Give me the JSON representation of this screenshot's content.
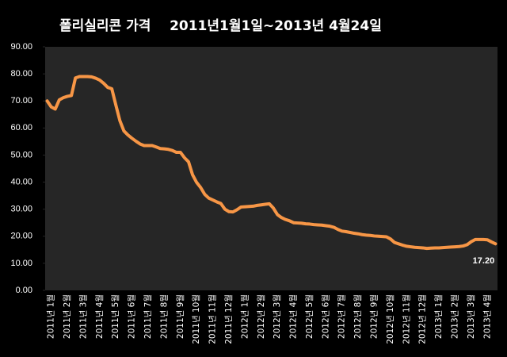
{
  "chart_data": {
    "type": "line",
    "title": "폴리실리콘 가격    2011년1월1일~2013년 4월24일",
    "categories": [
      null,
      "2011년 1월",
      null,
      null,
      null,
      "2011년 2월",
      null,
      null,
      null,
      "2011년 3월",
      null,
      null,
      null,
      "2011년 4월",
      null,
      null,
      null,
      "2011년 5월",
      null,
      null,
      null,
      "2011년 6월",
      null,
      null,
      null,
      "2011년 7월",
      null,
      null,
      null,
      "2011년 8월",
      null,
      null,
      null,
      "2011년 9월",
      null,
      null,
      null,
      "2011년 10월",
      null,
      null,
      null,
      "2011년 11월",
      null,
      null,
      null,
      "2011년 12월",
      null,
      null,
      null,
      "2012년 1월",
      null,
      null,
      null,
      "2012년 2월",
      null,
      null,
      null,
      "2012년 3월",
      null,
      null,
      null,
      "2012년 4월",
      null,
      null,
      null,
      "2012년 5월",
      null,
      null,
      null,
      "2012년 6월",
      null,
      null,
      null,
      "2012년 7월",
      null,
      null,
      null,
      "2012년 8월",
      null,
      null,
      null,
      "2012년 9월",
      null,
      null,
      null,
      "2012년 10월",
      null,
      null,
      null,
      "2012년 11월",
      null,
      null,
      null,
      "2012년 12월",
      null,
      null,
      null,
      "2013년 1월",
      null,
      null,
      null,
      "2013년 2월",
      null,
      null,
      null,
      "2013년 3월",
      null,
      null,
      null,
      "2013년 4월",
      null,
      null
    ],
    "values": [
      70,
      67.8,
      67,
      70.4,
      71.2,
      71.7,
      72,
      78.5,
      79,
      79,
      79,
      78.9,
      78.4,
      77.7,
      76.5,
      75,
      74.5,
      68.5,
      62.7,
      58.9,
      57.4,
      56.2,
      55.1,
      54.1,
      53.5,
      53.5,
      53.5,
      53,
      52.4,
      52.3,
      52.1,
      51.7,
      51,
      51,
      49,
      47.5,
      42.7,
      39.9,
      38,
      35.5,
      34.1,
      33.4,
      32.7,
      32.1,
      30,
      29.1,
      29,
      29.8,
      30.8,
      30.9,
      31,
      31.1,
      31.4,
      31.6,
      31.8,
      32,
      30.4,
      28,
      26.9,
      26.2,
      25.7,
      25,
      24.9,
      24.8,
      24.6,
      24.5,
      24.3,
      24.2,
      24.1,
      23.9,
      23.7,
      23.3,
      22.5,
      21.9,
      21.7,
      21.4,
      21.1,
      20.9,
      20.6,
      20.4,
      20.3,
      20.1,
      20,
      19.9,
      19.8,
      19,
      17.7,
      17.2,
      16.7,
      16.3,
      16.1,
      15.9,
      15.8,
      15.7,
      15.5,
      15.6,
      15.7,
      15.7,
      15.8,
      15.9,
      16,
      16.1,
      16.2,
      16.4,
      16.9,
      18,
      18.8,
      18.8,
      18.8,
      18.7,
      17.9,
      17.2
    ],
    "value_labels": [
      null,
      null,
      null,
      null,
      null,
      null,
      null,
      null,
      null,
      null,
      null,
      null,
      null,
      null,
      null,
      null,
      null,
      null,
      null,
      null,
      null,
      null,
      null,
      null,
      null,
      null,
      null,
      null,
      null,
      null,
      null,
      null,
      null,
      null,
      null,
      null,
      null,
      null,
      null,
      null,
      null,
      null,
      null,
      null,
      null,
      null,
      null,
      null,
      null,
      null,
      null,
      null,
      null,
      null,
      null,
      null,
      null,
      null,
      null,
      null,
      null,
      null,
      null,
      null,
      null,
      null,
      null,
      null,
      null,
      null,
      null,
      null,
      null,
      null,
      null,
      null,
      null,
      null,
      null,
      null,
      null,
      null,
      null,
      null,
      null,
      null,
      null,
      null,
      null,
      null,
      null,
      null,
      null,
      null,
      null,
      null,
      null,
      null,
      null,
      null,
      null,
      null,
      null,
      null,
      null,
      null,
      null,
      null,
      null,
      null,
      null,
      "17.20"
    ],
    "color": "#f79646",
    "ylim": [
      0,
      90
    ],
    "yticks": [
      {
        "value": 0,
        "label": "0.00"
      },
      {
        "value": 10,
        "label": "10.00"
      },
      {
        "value": 20,
        "label": "20.00"
      },
      {
        "value": 30,
        "label": "30.00"
      },
      {
        "value": 40,
        "label": "40.00"
      },
      {
        "value": 50,
        "label": "50.00"
      },
      {
        "value": 60,
        "label": "60.00"
      },
      {
        "value": 70,
        "label": "70.00"
      },
      {
        "value": 80,
        "label": "80.00"
      },
      {
        "value": 90,
        "label": "90.00"
      }
    ],
    "grid": false
  }
}
